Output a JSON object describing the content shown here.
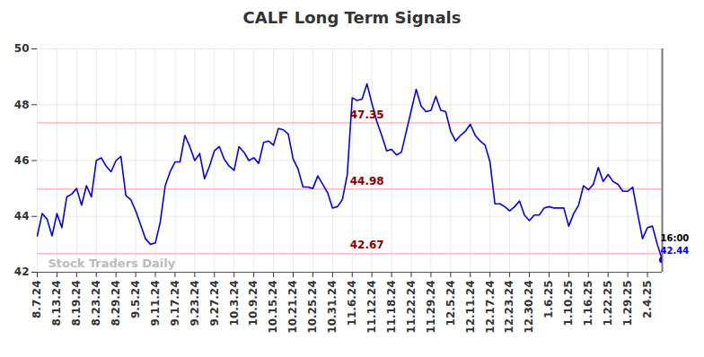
{
  "chart_data": {
    "type": "line",
    "title": "CALF Long Term Signals",
    "categories": [
      "8.7.24",
      null,
      null,
      null,
      "8.13.24",
      null,
      null,
      null,
      "8.19.24",
      null,
      null,
      null,
      "8.23.24",
      null,
      null,
      null,
      "8.29.24",
      null,
      null,
      null,
      "9.5.24",
      null,
      null,
      null,
      "9.11.24",
      null,
      null,
      null,
      "9.17.24",
      null,
      null,
      null,
      "9.23.24",
      null,
      null,
      null,
      "9.27.24",
      null,
      null,
      null,
      "10.3.24",
      null,
      null,
      null,
      "10.9.24",
      null,
      null,
      null,
      "10.15.24",
      null,
      null,
      null,
      "10.21.24",
      null,
      null,
      null,
      "10.25.24",
      null,
      null,
      null,
      "10.31.24",
      null,
      null,
      null,
      "11.6.24",
      null,
      null,
      null,
      "11.12.24",
      null,
      null,
      null,
      "11.18.24",
      null,
      null,
      null,
      "11.22.24",
      null,
      null,
      null,
      "11.29.24",
      null,
      null,
      null,
      "12.5.24",
      null,
      null,
      null,
      "12.11.24",
      null,
      null,
      null,
      "12.17.24",
      null,
      null,
      null,
      "12.23.24",
      null,
      null,
      null,
      "12.30.24",
      null,
      null,
      null,
      "1.6.25",
      null,
      null,
      null,
      "1.10.25",
      null,
      null,
      null,
      "1.16.25",
      null,
      null,
      null,
      "1.22.25",
      null,
      null,
      null,
      "1.29.25",
      null,
      null,
      null,
      "2.4.25",
      null,
      null,
      null
    ],
    "values": [
      43.3,
      44.1,
      43.9,
      43.3,
      44.1,
      43.6,
      44.7,
      44.8,
      45.0,
      44.4,
      45.1,
      44.7,
      46.0,
      46.1,
      45.8,
      45.6,
      46.0,
      46.15,
      44.75,
      44.6,
      44.2,
      43.7,
      43.2,
      43.0,
      43.05,
      43.8,
      45.1,
      45.6,
      45.95,
      45.95,
      46.9,
      46.5,
      46.0,
      46.25,
      45.35,
      45.8,
      46.35,
      46.5,
      46.05,
      45.8,
      45.65,
      46.5,
      46.3,
      46.0,
      46.1,
      45.9,
      46.65,
      46.7,
      46.55,
      47.15,
      47.1,
      46.95,
      46.05,
      45.7,
      45.05,
      45.05,
      45.0,
      45.45,
      45.15,
      44.85,
      44.3,
      44.35,
      44.6,
      45.5,
      48.25,
      48.15,
      48.2,
      48.75,
      48.05,
      47.4,
      46.9,
      46.35,
      46.4,
      46.2,
      46.3,
      47.05,
      47.8,
      48.55,
      47.95,
      47.75,
      47.8,
      48.3,
      47.8,
      47.75,
      47.05,
      46.7,
      46.9,
      47.05,
      47.3,
      46.9,
      46.7,
      46.55,
      45.95,
      44.45,
      44.45,
      44.35,
      44.2,
      44.35,
      44.55,
      44.05,
      43.85,
      44.05,
      44.05,
      44.3,
      44.35,
      44.3,
      44.3,
      44.3,
      43.65,
      44.1,
      44.4,
      45.1,
      44.95,
      45.15,
      45.75,
      45.25,
      45.5,
      45.25,
      45.15,
      44.9,
      44.9,
      45.05,
      44.1,
      43.2,
      43.6,
      43.65,
      43.0,
      42.44
    ],
    "color": "#0000ee",
    "ylim": [
      42,
      50
    ],
    "yticks": [
      42,
      44,
      46,
      48,
      50
    ],
    "grid": true,
    "levels": [
      47.35,
      44.98,
      42.67
    ],
    "time_label": "16:00",
    "watermark": "Stock Traders Daily"
  }
}
